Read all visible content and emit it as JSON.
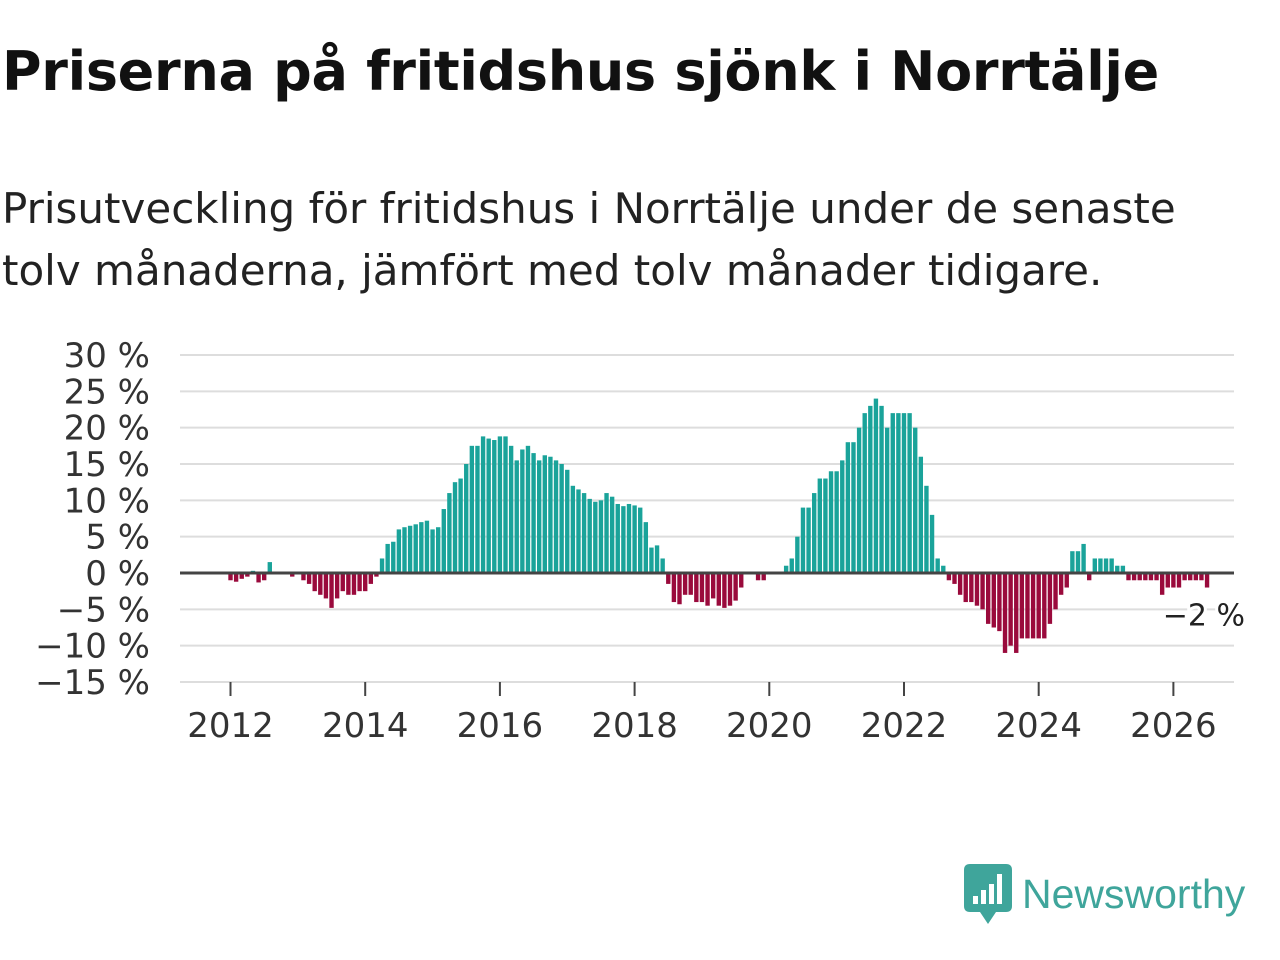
{
  "title": "Priserna på fritidshus sjönk i Norrtälje",
  "subtitle": "Prisutveckling för fritidshus i Norrtälje under de senaste tolv månaderna, jämfört med tolv månader tidigare.",
  "brand": {
    "name": "Newsworthy",
    "icon": "newsworthy-chart-icon",
    "color": "#3fa59b"
  },
  "colors": {
    "positive": "#1aa39a",
    "negative": "#9a0a3c",
    "grid": "#dddddd",
    "zero_line": "#444444"
  },
  "chart_data": {
    "type": "bar",
    "title": "Prisutveckling för fritidshus i Norrtälje",
    "xlabel": "",
    "ylabel": "",
    "ylim": [
      -15,
      30
    ],
    "xlim": [
      2011.25,
      2026.9
    ],
    "y_ticks": [
      30,
      25,
      20,
      15,
      10,
      5,
      0,
      -5,
      -10,
      -15
    ],
    "y_tick_labels": [
      "30 %",
      "25 %",
      "20 %",
      "15 %",
      "10 %",
      "5 %",
      "0 %",
      "−5 %",
      "−10 %",
      "−15 %"
    ],
    "x_ticks": [
      2012,
      2014,
      2016,
      2018,
      2020,
      2022,
      2024,
      2026
    ],
    "x_tick_labels": [
      "2012",
      "2014",
      "2016",
      "2018",
      "2020",
      "2022",
      "2024",
      "2026"
    ],
    "start": "2012-01",
    "frequency": "monthly",
    "last_label": "−2 %",
    "values": [
      -1,
      -1.2,
      -0.8,
      -0.5,
      0.3,
      -1.3,
      -1,
      1.5,
      0,
      0,
      0,
      -0.5,
      0,
      -1,
      -1.5,
      -2.5,
      -3,
      -3.5,
      -4.8,
      -3.5,
      -2.5,
      -3,
      -3,
      -2.5,
      -2.5,
      -1.5,
      -0.5,
      2,
      4,
      4.3,
      6,
      6.3,
      6.5,
      6.7,
      7,
      7.2,
      6,
      6.3,
      8.8,
      11,
      12.5,
      13,
      15,
      17.5,
      17.5,
      18.8,
      18.5,
      18.3,
      18.8,
      18.8,
      17.5,
      15.5,
      17,
      17.5,
      16.5,
      15.5,
      16.2,
      16,
      15.5,
      15,
      14.2,
      12,
      11.5,
      11,
      10.2,
      9.8,
      10,
      11,
      10.5,
      9.5,
      9.2,
      9.5,
      9.3,
      9,
      7,
      3.5,
      3.8,
      2,
      -1.5,
      -4,
      -4.3,
      -3,
      -3,
      -4,
      -4,
      -4.5,
      -3.5,
      -4.5,
      -4.8,
      -4.5,
      -3.8,
      -2,
      0,
      0,
      -1,
      -1,
      0,
      0,
      0,
      1,
      2,
      5,
      9,
      9,
      11,
      13,
      13,
      14,
      14,
      15.5,
      18,
      18,
      20,
      22,
      23,
      24,
      23,
      20,
      22,
      22,
      22,
      22,
      20,
      16,
      12,
      8,
      2,
      1,
      -1,
      -1.5,
      -3,
      -4,
      -4,
      -4.5,
      -5,
      -7,
      -7.5,
      -8,
      -11,
      -10,
      -11,
      -9,
      -9,
      -9,
      -9,
      -9,
      -7,
      -5,
      -3,
      -2,
      3,
      3,
      4,
      -1,
      2,
      2,
      2,
      2,
      1,
      1,
      -1,
      -1,
      -1,
      -1,
      -1,
      -1,
      -3,
      -2,
      -2,
      -2,
      -1,
      -1,
      -1,
      -1,
      -2
    ]
  }
}
